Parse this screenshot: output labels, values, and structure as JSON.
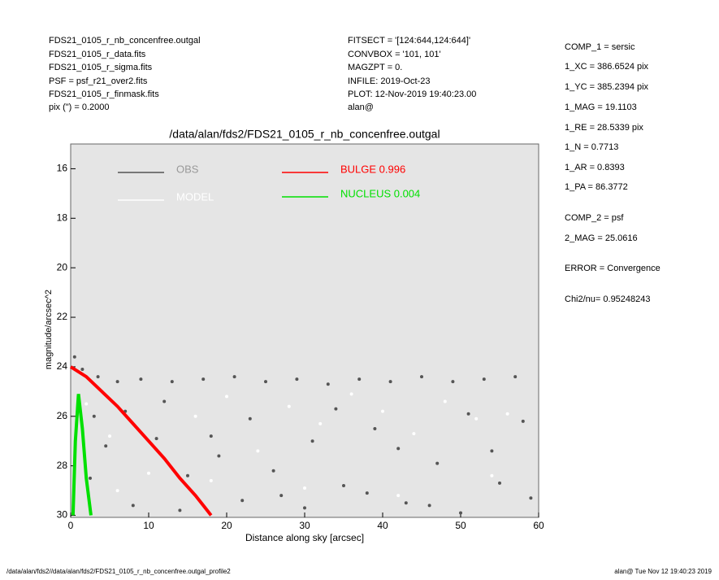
{
  "header": {
    "left": [
      "FDS21_0105_r_nb_concenfree.outgal",
      "FDS21_0105_r_data.fits",
      "FDS21_0105_r_sigma.fits",
      "PSF    = psf_r21_over2.fits",
      "FDS21_0105_r_finmask.fits",
      "pix (\") =  0.2000"
    ],
    "middle": [
      "FITSECT = '[124:644,124:644]'",
      "CONVBOX = '101, 101'",
      "MAGZPT  =               0.",
      "INFILE: 2019-Oct-23",
      "PLOT: 12-Nov-2019 19:40:23.00",
      "alan@"
    ]
  },
  "params": [
    "COMP_1  = sersic",
    "1_XC    = 386.6524 pix",
    "1_YC    = 385.2394 pix",
    "1_MAG   = 19.1103",
    "1_RE    = 28.5339 pix",
    "1_N     = 0.7713",
    "1_AR    = 0.8393",
    "1_PA    = 86.3772",
    "COMP_2  = psf",
    "2_MAG   = 25.0616",
    "ERROR   = Convergence",
    "Chi2/nu=      0.95248243"
  ],
  "footer": {
    "left": "/data/alan/fds2//data/alan/fds2/FDS21_0105_r_nb_concenfree.outgal_profile2",
    "right": "alan@  Tue Nov 12 19:40:23 2019"
  },
  "chart_data": {
    "type": "line",
    "title": "/data/alan/fds2/FDS21_0105_r_nb_concenfree.outgal",
    "x_label": "Distance along sky [arcsec]",
    "y_label": "magnitude/arcsec^2",
    "xlim": [
      0,
      60
    ],
    "ylim": [
      30,
      15
    ],
    "xticks": [
      0,
      10,
      20,
      30,
      40,
      50,
      60
    ],
    "yticks": [
      16,
      18,
      20,
      22,
      24,
      26,
      28,
      30
    ],
    "series": [
      {
        "name": "OBS",
        "color": "#555555",
        "mode": "markers",
        "x": [
          0.5,
          1.5,
          2.5,
          3.5,
          4.5,
          6,
          7,
          9,
          11,
          13,
          15,
          17,
          19,
          21,
          23,
          25,
          27,
          29,
          31,
          33,
          35,
          37,
          39,
          41,
          43,
          45,
          47,
          49,
          51,
          53,
          55,
          57,
          59,
          8,
          14,
          22,
          30,
          38,
          46,
          54,
          12,
          26,
          42,
          58,
          3,
          18,
          34,
          50
        ],
        "values": [
          23.6,
          24.1,
          28.5,
          24.4,
          27.2,
          24.6,
          25.8,
          24.5,
          26.9,
          24.6,
          28.4,
          24.5,
          27.6,
          24.4,
          26.1,
          24.6,
          29.2,
          24.5,
          27.0,
          24.7,
          28.8,
          24.5,
          26.5,
          24.6,
          29.5,
          24.4,
          27.9,
          24.6,
          25.9,
          24.5,
          28.7,
          24.4,
          29.3,
          29.6,
          29.8,
          29.4,
          29.7,
          29.1,
          29.6,
          27.4,
          25.4,
          28.2,
          27.3,
          26.2,
          26.0,
          26.8,
          25.7,
          29.9
        ]
      },
      {
        "name": "MODEL",
        "color": "#ffffff",
        "mode": "markers",
        "x": [
          2,
          5,
          10,
          16,
          20,
          24,
          28,
          32,
          36,
          40,
          44,
          48,
          52,
          56,
          6,
          18,
          30,
          42,
          54
        ],
        "values": [
          25.5,
          26.8,
          28.3,
          26.0,
          25.2,
          27.4,
          25.6,
          26.3,
          25.1,
          25.8,
          26.7,
          25.4,
          26.1,
          25.9,
          29.0,
          28.6,
          28.9,
          29.2,
          28.4
        ]
      },
      {
        "name": "BULGE  0.996",
        "color": "#ff0000",
        "mode": "lines",
        "x": [
          0,
          2,
          4,
          6,
          8,
          10,
          12,
          14,
          16,
          18
        ],
        "values": [
          24.0,
          24.4,
          25.0,
          25.6,
          26.3,
          27.0,
          27.7,
          28.5,
          29.2,
          30.0
        ]
      },
      {
        "name": "NUCLEUS  0.004",
        "color": "#00e000",
        "mode": "lines",
        "x": [
          0.3,
          0.6,
          1.0,
          1.5,
          2.0,
          2.6
        ],
        "values": [
          30.0,
          27.0,
          25.1,
          26.5,
          28.5,
          30.0
        ]
      }
    ]
  }
}
